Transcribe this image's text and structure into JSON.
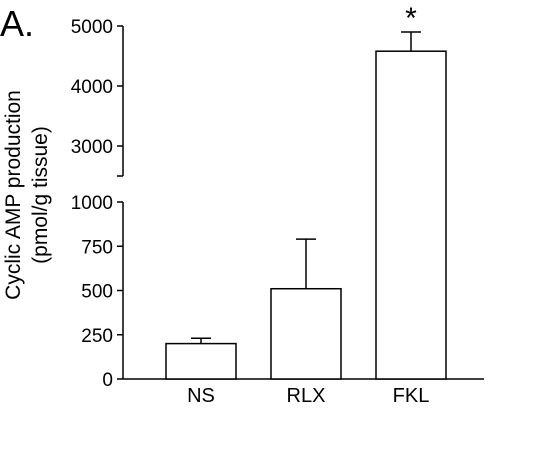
{
  "panel_label": "A.",
  "chart_data": {
    "type": "bar",
    "categories": [
      "NS",
      "RLX",
      "FKL"
    ],
    "values": [
      200,
      510,
      4580
    ],
    "error_upper": [
      30,
      280,
      320
    ],
    "ylabel": "Cyclic AMP production",
    "ylabel_unit": "(pmol/g tissue)",
    "axis_break": true,
    "segments": [
      {
        "range": [
          0,
          1000
        ],
        "ticks": [
          0,
          250,
          500,
          750,
          1000
        ],
        "tick_labels": [
          "0",
          "250",
          "500",
          "750",
          "1000"
        ]
      },
      {
        "range": [
          2500,
          5000
        ],
        "ticks": [
          3000,
          4000,
          5000
        ],
        "tick_labels": [
          "3000",
          "4000",
          "5000"
        ]
      }
    ],
    "annotations": [
      {
        "category": "FKL",
        "text": "*"
      }
    ],
    "bar_fill": "#ffffff",
    "stroke_color": "#000000",
    "grid": false,
    "legend": "none"
  }
}
